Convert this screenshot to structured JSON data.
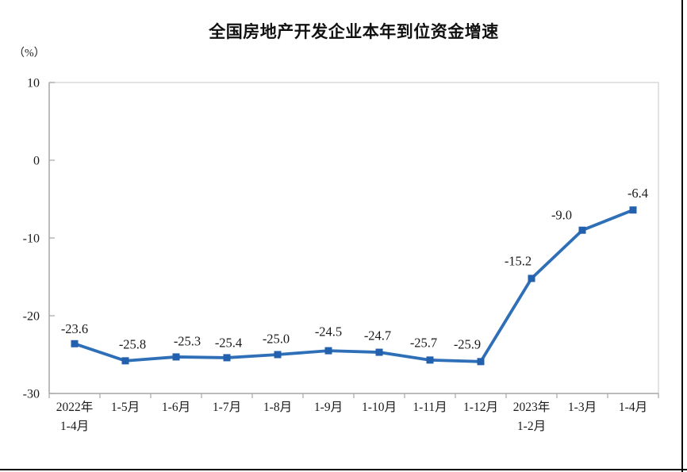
{
  "page": {
    "title": "全国房地产开发企业本年到位资金增速",
    "unit_label": "（%）"
  },
  "chart_data": {
    "type": "line",
    "title": "全国房地产开发企业本年到位资金增速",
    "ylabel": "（%）",
    "xlabel": "",
    "categories": [
      "2022年\n1-4月",
      "1-5月",
      "1-6月",
      "1-7月",
      "1-8月",
      "1-9月",
      "1-10月",
      "1-11月",
      "1-12月",
      "2023年\n1-2月",
      "1-3月",
      "1-4月"
    ],
    "values": [
      -23.6,
      -25.8,
      -25.3,
      -25.4,
      -25.0,
      -24.5,
      -24.7,
      -25.7,
      -25.9,
      -15.2,
      -9.0,
      -6.4
    ],
    "data_labels": [
      "-23.6",
      "-25.8",
      "-25.3",
      "-25.4",
      "-25.0",
      "-24.5",
      "-24.7",
      "-25.7",
      "-25.9",
      "-15.2",
      "-9.0",
      "-6.4"
    ],
    "ylim": [
      -30,
      10
    ],
    "yticks": [
      10,
      0,
      -10,
      -20,
      -30
    ],
    "grid": false,
    "legend": "none",
    "series_name": "本年到位资金增速",
    "line_color": "#2e6fb7",
    "marker_color": "#2361ae",
    "marker_shape": "square",
    "axis_color": "#acacac",
    "plot_border_color": "#d9d9d9"
  }
}
